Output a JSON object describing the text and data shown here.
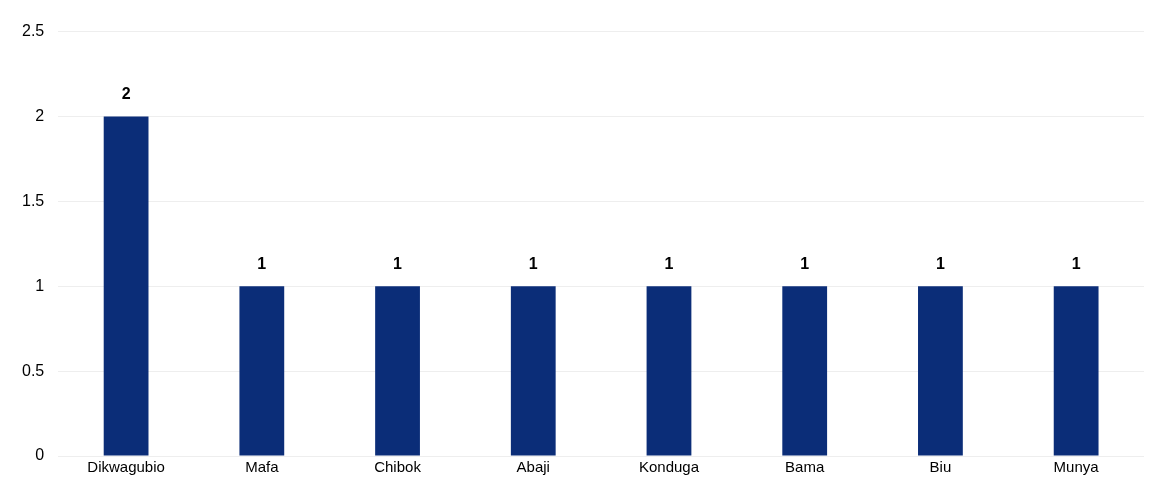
{
  "chart_data": {
    "type": "bar",
    "categories": [
      "Dikwagubio",
      "Mafa",
      "Chibok",
      "Abaji",
      "Konduga",
      "Bama",
      "Biu",
      "Munya"
    ],
    "values": [
      2,
      1,
      1,
      1,
      1,
      1,
      1,
      1
    ],
    "color": "#0b2d78",
    "ylim": [
      0,
      2.5
    ],
    "yticks": [
      0,
      0.5,
      1,
      1.5,
      2,
      2.5
    ],
    "grid": "y",
    "data_labels": true
  }
}
